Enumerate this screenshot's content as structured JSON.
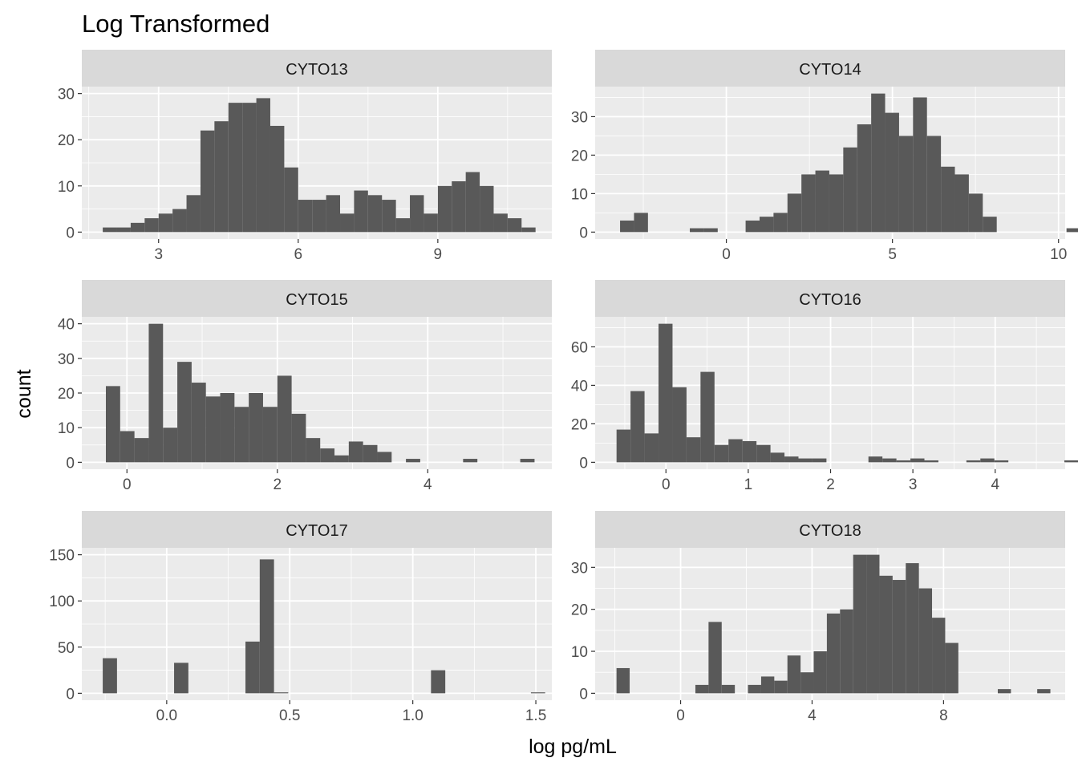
{
  "chart_data": {
    "type": "bar",
    "title": "Log Transformed",
    "xlabel": "log pg/mL",
    "ylabel": "count",
    "grid": true,
    "colors": {
      "bar": "#595959",
      "panel_background": "#ebebeb",
      "strip_background": "#d9d9d9",
      "grid": "#ffffff",
      "tick_label": "#4d4d4d"
    },
    "facets": [
      {
        "label": "CYTO13",
        "xlim": [
          1.35,
          11.45
        ],
        "ylim": [
          -1.5,
          31.5
        ],
        "xticks": [
          {
            "value": 3,
            "label": "3"
          },
          {
            "value": 6,
            "label": "6"
          },
          {
            "value": 9,
            "label": "9"
          }
        ],
        "yticks": [
          {
            "value": 0,
            "label": "0"
          },
          {
            "value": 10,
            "label": "10"
          },
          {
            "value": 20,
            "label": "20"
          },
          {
            "value": 30,
            "label": "30"
          }
        ],
        "bins": {
          "start": 1.8,
          "width": 0.3,
          "counts": [
            1,
            1,
            2,
            3,
            4,
            5,
            8,
            22,
            24,
            28,
            28,
            29,
            23,
            14,
            7,
            7,
            8,
            4,
            9,
            8,
            7,
            3,
            8,
            4,
            10,
            11,
            13,
            10,
            4,
            3,
            1
          ]
        }
      },
      {
        "label": "CYTO14",
        "xlim": [
          -3.95,
          10.2
        ],
        "ylim": [
          -1.8,
          37.8
        ],
        "xticks": [
          {
            "value": 0,
            "label": "0"
          },
          {
            "value": 5,
            "label": "5"
          },
          {
            "value": 10,
            "label": "10"
          }
        ],
        "yticks": [
          {
            "value": 0,
            "label": "0"
          },
          {
            "value": 10,
            "label": "10"
          },
          {
            "value": 20,
            "label": "20"
          },
          {
            "value": 30,
            "label": "30"
          }
        ],
        "bins": {
          "start": -3.2,
          "width": 0.42,
          "counts": [
            3,
            5,
            0,
            0,
            0,
            1,
            1,
            0,
            0,
            3,
            4,
            5,
            10,
            15,
            16,
            15,
            22,
            28,
            36,
            31,
            25,
            35,
            25,
            17,
            15,
            10,
            4,
            0,
            0,
            0,
            0,
            0,
            1
          ]
        }
      },
      {
        "label": "CYTO15",
        "xlim": [
          -0.6,
          5.65
        ],
        "ylim": [
          -2,
          42
        ],
        "xticks": [
          {
            "value": 0,
            "label": "0"
          },
          {
            "value": 2,
            "label": "2"
          },
          {
            "value": 4,
            "label": "4"
          }
        ],
        "yticks": [
          {
            "value": 0,
            "label": "0"
          },
          {
            "value": 10,
            "label": "10"
          },
          {
            "value": 20,
            "label": "20"
          },
          {
            "value": 30,
            "label": "30"
          },
          {
            "value": 40,
            "label": "40"
          }
        ],
        "bins": {
          "start": -0.28,
          "width": 0.19,
          "counts": [
            22,
            9,
            7,
            40,
            10,
            29,
            23,
            19,
            20,
            16,
            20,
            16,
            25,
            14,
            7,
            4,
            2,
            6,
            5,
            3,
            0,
            1,
            0,
            0,
            0,
            1,
            0,
            0,
            0,
            1
          ]
        }
      },
      {
        "label": "CYTO16",
        "xlim": [
          -0.86,
          4.85
        ],
        "ylim": [
          -3.6,
          75.6
        ],
        "xticks": [
          {
            "value": 0,
            "label": "0"
          },
          {
            "value": 1,
            "label": "1"
          },
          {
            "value": 2,
            "label": "2"
          },
          {
            "value": 3,
            "label": "3"
          },
          {
            "value": 4,
            "label": "4"
          }
        ],
        "yticks": [
          {
            "value": 0,
            "label": "0"
          },
          {
            "value": 20,
            "label": "20"
          },
          {
            "value": 40,
            "label": "40"
          },
          {
            "value": 60,
            "label": "60"
          }
        ],
        "bins": {
          "start": -0.6,
          "width": 0.17,
          "counts": [
            17,
            37,
            15,
            72,
            39,
            13,
            47,
            9,
            12,
            11,
            9,
            5,
            3,
            2,
            2,
            0,
            0,
            0,
            3,
            2,
            1,
            2,
            1,
            0,
            0,
            1,
            2,
            1,
            0,
            0,
            0,
            0,
            1
          ]
        }
      },
      {
        "label": "CYTO17",
        "xlim": [
          -0.345,
          1.565
        ],
        "ylim": [
          -7.5,
          157.5
        ],
        "xticks": [
          {
            "value": 0.0,
            "label": "0.0"
          },
          {
            "value": 0.5,
            "label": "0.5"
          },
          {
            "value": 1.0,
            "label": "1.0"
          },
          {
            "value": 1.5,
            "label": "1.5"
          }
        ],
        "yticks": [
          {
            "value": 0,
            "label": "0"
          },
          {
            "value": 50,
            "label": "50"
          },
          {
            "value": 100,
            "label": "100"
          },
          {
            "value": 150,
            "label": "150"
          }
        ],
        "bins": {
          "start": -0.26,
          "width": 0.058,
          "counts": [
            38,
            0,
            0,
            0,
            0,
            33,
            0,
            0,
            0,
            0,
            56,
            145,
            1,
            0,
            0,
            0,
            0,
            0,
            0,
            0,
            0,
            0,
            0,
            25,
            0,
            0,
            0,
            0,
            0,
            0,
            1
          ]
        }
      },
      {
        "label": "CYTO18",
        "xlim": [
          -2.6,
          11.7
        ],
        "ylim": [
          -1.65,
          34.65
        ],
        "xticks": [
          {
            "value": 0,
            "label": "0"
          },
          {
            "value": 4,
            "label": "4"
          },
          {
            "value": 8,
            "label": "8"
          }
        ],
        "yticks": [
          {
            "value": 0,
            "label": "0"
          },
          {
            "value": 10,
            "label": "10"
          },
          {
            "value": 20,
            "label": "20"
          },
          {
            "value": 30,
            "label": "30"
          }
        ],
        "bins": {
          "start": -1.95,
          "width": 0.4,
          "counts": [
            6,
            0,
            0,
            0,
            0,
            0,
            2,
            17,
            2,
            0,
            2,
            4,
            3,
            9,
            5,
            10,
            19,
            20,
            33,
            33,
            28,
            27,
            31,
            25,
            18,
            12,
            0,
            0,
            0,
            1,
            0,
            0,
            1
          ]
        }
      }
    ]
  }
}
